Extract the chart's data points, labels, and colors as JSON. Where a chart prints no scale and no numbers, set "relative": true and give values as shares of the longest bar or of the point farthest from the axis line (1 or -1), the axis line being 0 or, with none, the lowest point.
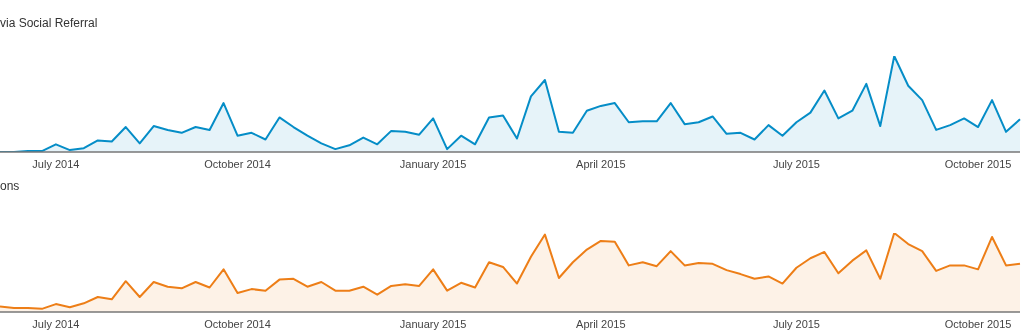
{
  "chart_data": [
    {
      "type": "area",
      "title": "via Social Referral",
      "relative": true,
      "categories": [
        null,
        null,
        null,
        null,
        "July 2014",
        null,
        null,
        null,
        null,
        null,
        null,
        null,
        null,
        null,
        null,
        null,
        null,
        "October 2014",
        null,
        null,
        null,
        null,
        null,
        null,
        null,
        null,
        null,
        null,
        null,
        null,
        null,
        "January 2015",
        null,
        null,
        null,
        null,
        null,
        null,
        null,
        null,
        null,
        null,
        null,
        "April 2015",
        null,
        null,
        null,
        null,
        null,
        null,
        null,
        null,
        null,
        null,
        null,
        null,
        null,
        "July 2015",
        null,
        null,
        null,
        null,
        null,
        null,
        null,
        null,
        null,
        null,
        null,
        null,
        "October 2015",
        null,
        null,
        null
      ],
      "series": [
        {
          "color": "#058dc7",
          "values": [
            0,
            0.0,
            0.01,
            0.01,
            0.08,
            0.02,
            0.04,
            0.12,
            0.11,
            0.26,
            0.09,
            0.27,
            0.23,
            0.2,
            0.26,
            0.23,
            0.51,
            0.17,
            0.2,
            0.13,
            0.36,
            0.26,
            0.17,
            0.09,
            0.03,
            0.07,
            0.15,
            0.08,
            0.22,
            0.21,
            0.18,
            0.35,
            0.03,
            0.17,
            0.08,
            0.36,
            0.38,
            0.14,
            0.58,
            0.75,
            0.21,
            0.2,
            0.43,
            0.48,
            0.51,
            0.31,
            0.32,
            0.32,
            0.51,
            0.29,
            0.31,
            0.37,
            0.19,
            0.2,
            0.13,
            0.28,
            0.17,
            0.31,
            0.41,
            0.64,
            0.35,
            0.43,
            0.71,
            0.27,
            1,
            0.69,
            0.54,
            0.23,
            0.28,
            0.35,
            0.26,
            0.54,
            0.21,
            0.34
          ]
        }
      ]
    },
    {
      "type": "area",
      "title": "ons",
      "relative": true,
      "categories": [
        null,
        null,
        null,
        null,
        "July 2014",
        null,
        null,
        null,
        null,
        null,
        null,
        null,
        null,
        null,
        null,
        null,
        null,
        "October 2014",
        null,
        null,
        null,
        null,
        null,
        null,
        null,
        null,
        null,
        null,
        null,
        null,
        null,
        "January 2015",
        null,
        null,
        null,
        null,
        null,
        null,
        null,
        null,
        null,
        null,
        null,
        "April 2015",
        null,
        null,
        null,
        null,
        null,
        null,
        null,
        null,
        null,
        null,
        null,
        null,
        null,
        "July 2015",
        null,
        null,
        null,
        null,
        null,
        null,
        null,
        null,
        null,
        null,
        null,
        null,
        "October 2015",
        null,
        null,
        null
      ],
      "series": [
        {
          "color": "#ed7e17",
          "values": [
            0.07,
            0.05,
            0.05,
            0.04,
            0.1,
            0.06,
            0.11,
            0.19,
            0.16,
            0.39,
            0.19,
            0.38,
            0.32,
            0.3,
            0.38,
            0.31,
            0.54,
            0.24,
            0.29,
            0.27,
            0.41,
            0.42,
            0.32,
            0.38,
            0.27,
            0.27,
            0.32,
            0.22,
            0.33,
            0.35,
            0.33,
            0.54,
            0.27,
            0.37,
            0.31,
            0.63,
            0.57,
            0.36,
            0.7,
            0.98,
            0.43,
            0.63,
            0.79,
            0.9,
            0.89,
            0.59,
            0.63,
            0.58,
            0.77,
            0.59,
            0.62,
            0.61,
            0.53,
            0.48,
            0.42,
            0.45,
            0.36,
            0.56,
            0.68,
            0.76,
            0.49,
            0.65,
            0.78,
            0.42,
            1,
            0.86,
            0.77,
            0.52,
            0.59,
            0.59,
            0.54,
            0.95,
            0.59,
            0.61
          ]
        }
      ]
    }
  ]
}
